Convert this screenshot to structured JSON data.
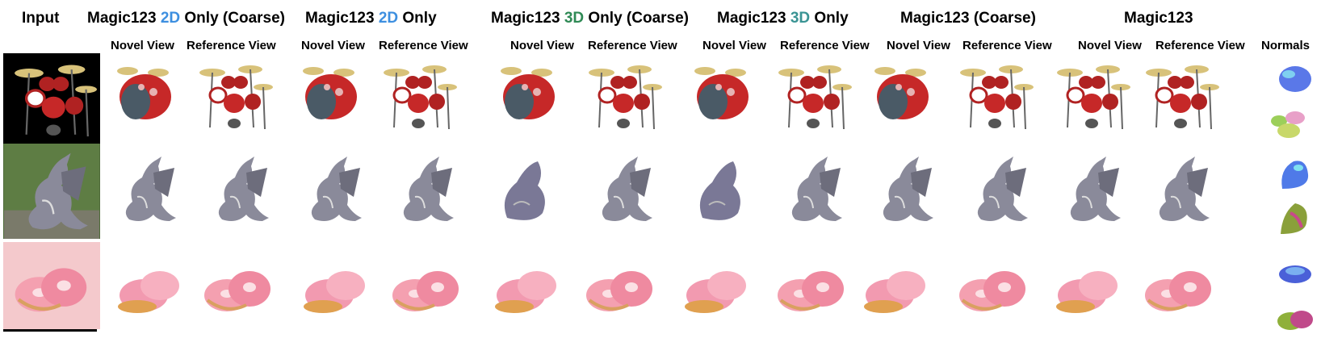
{
  "headers": {
    "input": "Input",
    "h2d_coarse": {
      "pre": "Magic123 ",
      "tag": "2D",
      "post": " Only (Coarse)"
    },
    "h2d": {
      "pre": "Magic123 ",
      "tag": "2D",
      "post": " Only"
    },
    "h3d_coarse": {
      "pre": "Magic123 ",
      "tag": "3D",
      "post": " Only (Coarse)"
    },
    "h3d": {
      "pre": "Magic123 ",
      "tag": "3D",
      "post": " Only"
    },
    "coarse": "Magic123 (Coarse)",
    "full": "Magic123"
  },
  "subheaders": {
    "novel": "Novel View",
    "reference": "Reference View",
    "normals": "Normals"
  },
  "colors": {
    "tag_2d": "#3d8fe0",
    "tag_3d_coarse": "#2f8a55",
    "tag_3d": "#3a9494",
    "input_drums_bg": "#000000",
    "input_donut_bg": "#f4c9cc"
  },
  "rows": [
    "drum-kit",
    "dragon-statue",
    "donuts"
  ]
}
